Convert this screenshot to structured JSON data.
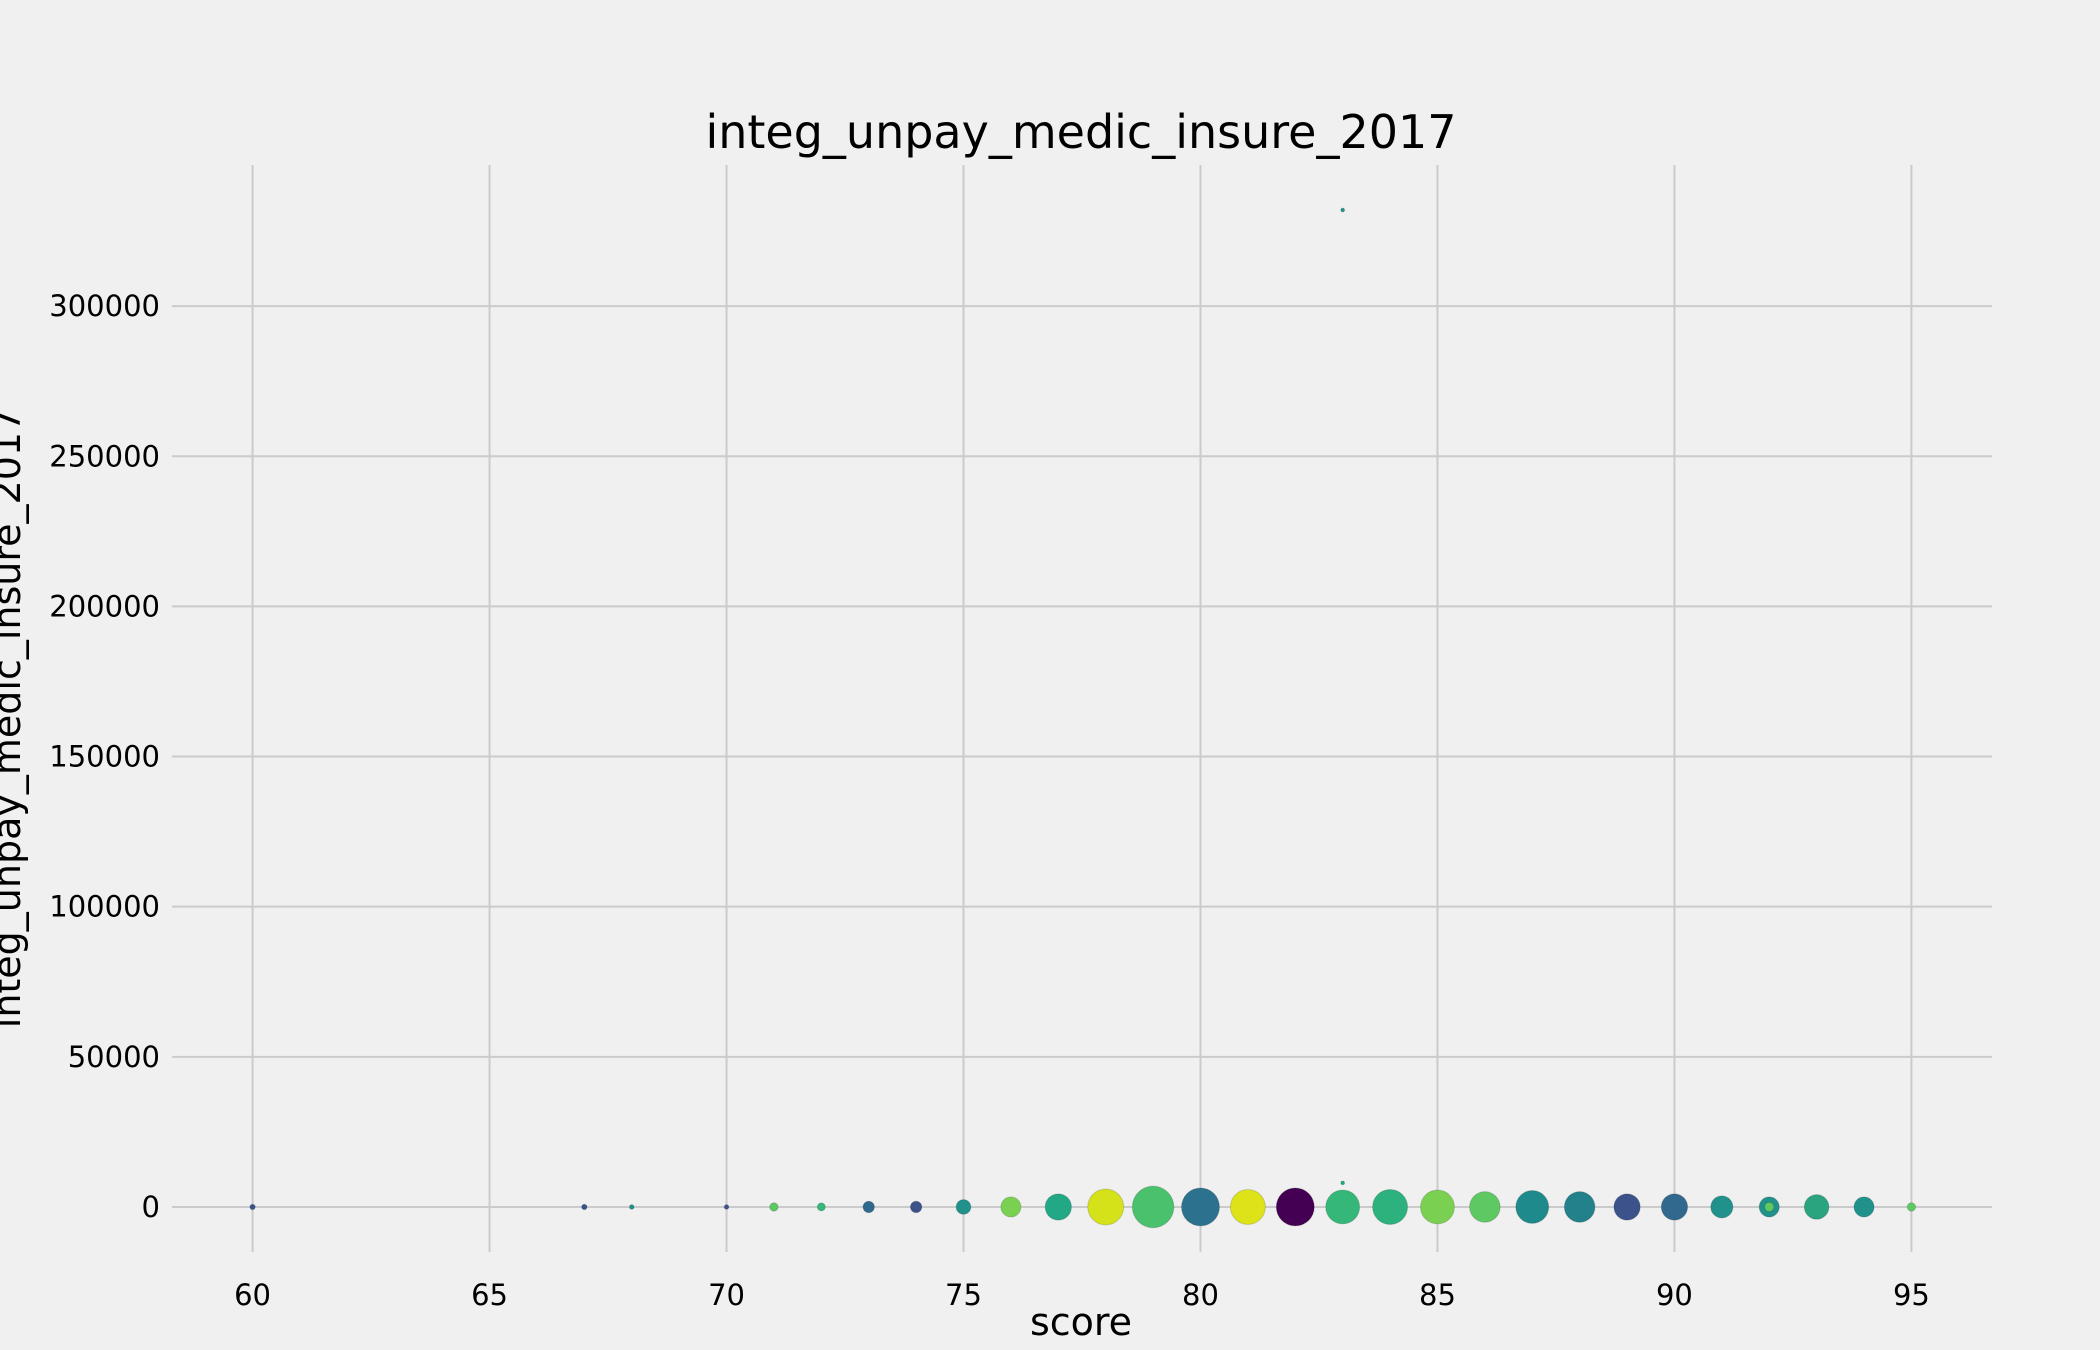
{
  "chart_data": {
    "type": "scatter",
    "title": "integ_unpay_medic_insure_2017",
    "xlabel": "score",
    "ylabel": "integ_unpay_medic_insure_2017",
    "xlim": [
      58.3,
      96.7
    ],
    "ylim": [
      -15000,
      347000
    ],
    "xticks": [
      60,
      65,
      70,
      75,
      80,
      85,
      90,
      95
    ],
    "yticks": [
      0,
      50000,
      100000,
      150000,
      200000,
      250000,
      300000
    ],
    "grid": true,
    "legend": "none",
    "points": [
      {
        "x": 60,
        "y": 0,
        "size": 0.2,
        "color": "#3b528b"
      },
      {
        "x": 67,
        "y": 0,
        "size": 0.2,
        "color": "#3b528b"
      },
      {
        "x": 68,
        "y": 0,
        "size": 0.15,
        "color": "#21918c"
      },
      {
        "x": 70,
        "y": 0,
        "size": 0.15,
        "color": "#3b528b"
      },
      {
        "x": 71,
        "y": 0,
        "size": 0.5,
        "color": "#5ec962"
      },
      {
        "x": 72,
        "y": 0,
        "size": 0.45,
        "color": "#35b779"
      },
      {
        "x": 73,
        "y": 0,
        "size": 0.9,
        "color": "#31688e"
      },
      {
        "x": 74,
        "y": 0,
        "size": 0.9,
        "color": "#3b528b"
      },
      {
        "x": 75,
        "y": 0,
        "size": 1.5,
        "color": "#21918c"
      },
      {
        "x": 76,
        "y": 0,
        "size": 2.8,
        "color": "#7ad151"
      },
      {
        "x": 77,
        "y": 0,
        "size": 4.8,
        "color": "#22a884"
      },
      {
        "x": 78,
        "y": 0,
        "size": 9,
        "color": "#d5e21a"
      },
      {
        "x": 79,
        "y": 0,
        "size": 12,
        "color": "#4ac16d"
      },
      {
        "x": 80,
        "y": 0,
        "size": 10,
        "color": "#2c728e"
      },
      {
        "x": 81,
        "y": 0,
        "size": 8.5,
        "color": "#dde318"
      },
      {
        "x": 82,
        "y": 0,
        "size": 10,
        "color": "#440154"
      },
      {
        "x": 83,
        "y": 0,
        "size": 8,
        "color": "#35b779"
      },
      {
        "x": 83,
        "y": 8000,
        "size": 0.1,
        "color": "#22a884"
      },
      {
        "x": 83,
        "y": 332000,
        "size": 0.1,
        "color": "#21918c"
      },
      {
        "x": 84,
        "y": 0,
        "size": 8.5,
        "color": "#2db27d"
      },
      {
        "x": 85,
        "y": 0,
        "size": 8,
        "color": "#7ad151"
      },
      {
        "x": 86,
        "y": 0,
        "size": 6.5,
        "color": "#5ec962"
      },
      {
        "x": 87,
        "y": 0,
        "size": 7.5,
        "color": "#1f8a8c"
      },
      {
        "x": 88,
        "y": 0,
        "size": 6.5,
        "color": "#23818c"
      },
      {
        "x": 89,
        "y": 0,
        "size": 4.8,
        "color": "#3b528b"
      },
      {
        "x": 90,
        "y": 0,
        "size": 4.8,
        "color": "#31688e"
      },
      {
        "x": 91,
        "y": 0,
        "size": 3.4,
        "color": "#21918c"
      },
      {
        "x": 92,
        "y": 0,
        "size": 2.8,
        "color": "#21918c"
      },
      {
        "x": 92,
        "y": 0,
        "size": 0.6,
        "color": "#5ec962"
      },
      {
        "x": 93,
        "y": 0,
        "size": 4.2,
        "color": "#2aa37f"
      },
      {
        "x": 94,
        "y": 0,
        "size": 2.8,
        "color": "#21918c"
      },
      {
        "x": 95,
        "y": 0,
        "size": 0.5,
        "color": "#5ec962"
      }
    ]
  }
}
